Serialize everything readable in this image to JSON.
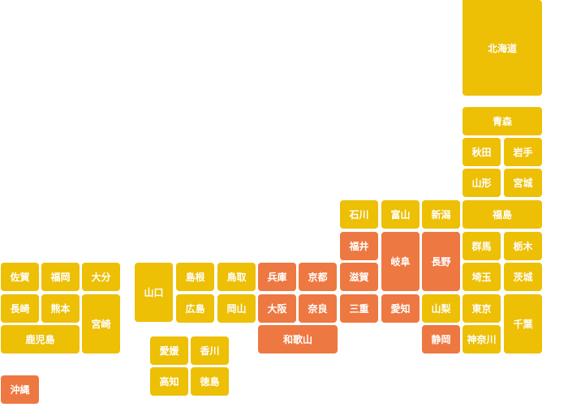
{
  "colors": {
    "default": "#EDBF05",
    "highlight": "#EE7841",
    "text": "#FFFFFF"
  },
  "prefectures": {
    "hokkaido": {
      "label": "北海道",
      "highlighted": false
    },
    "aomori": {
      "label": "青森",
      "highlighted": false
    },
    "akita": {
      "label": "秋田",
      "highlighted": false
    },
    "iwate": {
      "label": "岩手",
      "highlighted": false
    },
    "yamagata": {
      "label": "山形",
      "highlighted": false
    },
    "miyagi": {
      "label": "宮城",
      "highlighted": false
    },
    "fukushima": {
      "label": "福島",
      "highlighted": false
    },
    "niigata": {
      "label": "新潟",
      "highlighted": false
    },
    "toyama": {
      "label": "富山",
      "highlighted": false
    },
    "ishikawa": {
      "label": "石川",
      "highlighted": false
    },
    "fukui": {
      "label": "福井",
      "highlighted": true
    },
    "gifu": {
      "label": "岐阜",
      "highlighted": true
    },
    "nagano": {
      "label": "長野",
      "highlighted": true
    },
    "gunma": {
      "label": "群馬",
      "highlighted": false
    },
    "tochigi": {
      "label": "栃木",
      "highlighted": false
    },
    "saitama": {
      "label": "埼玉",
      "highlighted": false
    },
    "ibaraki": {
      "label": "茨城",
      "highlighted": false
    },
    "shiga": {
      "label": "滋賀",
      "highlighted": true
    },
    "kyoto": {
      "label": "京都",
      "highlighted": true
    },
    "hyogo": {
      "label": "兵庫",
      "highlighted": true
    },
    "mie": {
      "label": "三重",
      "highlighted": true
    },
    "aichi": {
      "label": "愛知",
      "highlighted": true
    },
    "yamanashi": {
      "label": "山梨",
      "highlighted": false
    },
    "tokyo": {
      "label": "東京",
      "highlighted": false
    },
    "chiba": {
      "label": "千葉",
      "highlighted": false
    },
    "osaka": {
      "label": "大阪",
      "highlighted": true
    },
    "nara": {
      "label": "奈良",
      "highlighted": true
    },
    "wakayama": {
      "label": "和歌山",
      "highlighted": true
    },
    "shizuoka": {
      "label": "静岡",
      "highlighted": true
    },
    "kanagawa": {
      "label": "神奈川",
      "highlighted": false
    },
    "tottori": {
      "label": "鳥取",
      "highlighted": false
    },
    "shimane": {
      "label": "島根",
      "highlighted": false
    },
    "okayama": {
      "label": "岡山",
      "highlighted": false
    },
    "hiroshima": {
      "label": "広島",
      "highlighted": false
    },
    "yamaguchi": {
      "label": "山口",
      "highlighted": false
    },
    "kagawa": {
      "label": "香川",
      "highlighted": false
    },
    "ehime": {
      "label": "愛媛",
      "highlighted": false
    },
    "tokushima": {
      "label": "徳島",
      "highlighted": false
    },
    "kochi": {
      "label": "高知",
      "highlighted": false
    },
    "fukuoka": {
      "label": "福岡",
      "highlighted": false
    },
    "saga": {
      "label": "佐賀",
      "highlighted": false
    },
    "oita": {
      "label": "大分",
      "highlighted": false
    },
    "nagasaki": {
      "label": "長崎",
      "highlighted": false
    },
    "kumamoto": {
      "label": "熊本",
      "highlighted": false
    },
    "miyazaki": {
      "label": "宮崎",
      "highlighted": false
    },
    "kagoshima": {
      "label": "鹿児島",
      "highlighted": false
    },
    "okinawa": {
      "label": "沖縄",
      "highlighted": true
    }
  }
}
